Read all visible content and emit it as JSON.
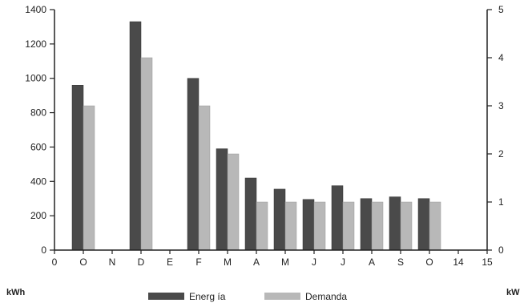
{
  "chart_data": {
    "type": "bar",
    "categories": [
      "O",
      "N",
      "D",
      "E",
      "F",
      "M",
      "A",
      "M",
      "J",
      "J",
      "A",
      "S",
      "O"
    ],
    "x_tick_labels": [
      "0",
      "O",
      "N",
      "D",
      "E",
      "F",
      "M",
      "A",
      "M",
      "J",
      "J",
      "A",
      "S",
      "O",
      "14",
      "15"
    ],
    "series": [
      {
        "name": "Energ ía",
        "axis": "left",
        "values": [
          960,
          null,
          1330,
          null,
          1000,
          590,
          420,
          355,
          295,
          375,
          300,
          310,
          300
        ]
      },
      {
        "name": "Demanda",
        "axis": "right",
        "values": [
          3.0,
          null,
          4.0,
          null,
          3.0,
          2.0,
          1.0,
          1.0,
          1.0,
          1.0,
          1.0,
          1.0,
          1.0
        ]
      }
    ],
    "y_left": {
      "label": "kWh",
      "ylim": [
        0,
        1400
      ],
      "ticks": [
        0,
        200,
        400,
        600,
        800,
        1000,
        1200,
        1400
      ]
    },
    "y_right": {
      "label": "kW",
      "ylim": [
        0,
        5
      ],
      "ticks": [
        0,
        1,
        2,
        3,
        4,
        5
      ]
    },
    "legend_position": "bottom",
    "grid": false,
    "colors": {
      "energia": "#4a4a4a",
      "demanda": "#b8b8b8",
      "axis": "#222222"
    }
  }
}
